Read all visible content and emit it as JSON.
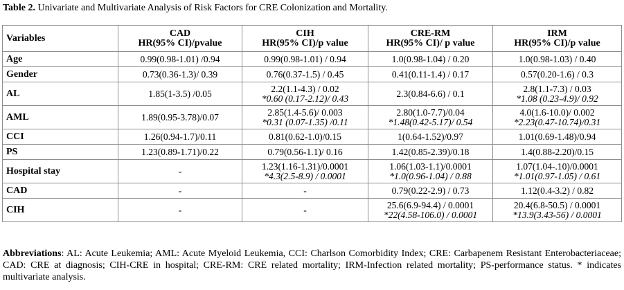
{
  "caption": {
    "label": "Table 2.",
    "text": " Univariate and Multivariate Analysis of Risk Factors for CRE Colonization and Mortality."
  },
  "table": {
    "headers": [
      {
        "line1": "Variables",
        "line2": ""
      },
      {
        "line1": "CAD",
        "line2": "HR(95% CI)/pvalue"
      },
      {
        "line1": "CIH",
        "line2": "HR(95% CI)/p value"
      },
      {
        "line1": "CRE-RM",
        "line2": "HR(95% CI)/ p value"
      },
      {
        "line1": "IRM",
        "line2": "HR(95% CI)/p value"
      }
    ],
    "rows": [
      {
        "variable": "Age",
        "cells": [
          {
            "uni": "0.99(0.98-1.01) /0.94",
            "multi": ""
          },
          {
            "uni": "0.99(0.98-1.01) / 0.94",
            "multi": ""
          },
          {
            "uni": "1.0(0.98-1.04) / 0.20",
            "multi": ""
          },
          {
            "uni": "1.0(0.98-1.03) / 0.40",
            "multi": ""
          }
        ]
      },
      {
        "variable": "Gender",
        "cells": [
          {
            "uni": "0.73(0.36-1.3)/ 0.39",
            "multi": ""
          },
          {
            "uni": "0.76(0.37-1.5) / 0.45",
            "multi": ""
          },
          {
            "uni": "0.41(0.11-1.4) / 0.17",
            "multi": ""
          },
          {
            "uni": "0.57(0.20-1.6) / 0.3",
            "multi": ""
          }
        ]
      },
      {
        "variable": "AL",
        "cells": [
          {
            "uni": "1.85(1-3.5) /0.05",
            "multi": ""
          },
          {
            "uni": "2.2(1.1-4.3) / 0.02",
            "multi": "*0.60 (0.17-2.12)/ 0.43"
          },
          {
            "uni": "2.3(0.84-6.6) / 0.1",
            "multi": ""
          },
          {
            "uni": "2.8(1.1-7.3) / 0.03",
            "multi": "*1.08 (0.23-4.9)/ 0.92"
          }
        ]
      },
      {
        "variable": "AML",
        "cells": [
          {
            "uni": "1.89(0.95-3.78)/0.07",
            "multi": ""
          },
          {
            "uni": "2.85(1.4-5.6)/ 0.003",
            "multi": "*0.31 (0.07-1.35) /0.11"
          },
          {
            "uni": "2.80(1.0-7.7)/0.04",
            "multi": "*1.48(0.42-5.17)/ 0.54"
          },
          {
            "uni": "4.0(1.6-10.0)/ 0.002",
            "multi": "*2.23(0.47-10.74)/0.31"
          }
        ]
      },
      {
        "variable": "CCI",
        "cells": [
          {
            "uni": "1.26(0.94-1.7)/0.11",
            "multi": ""
          },
          {
            "uni": "0.81(0.62-1.0)/0.15",
            "multi": ""
          },
          {
            "uni": "1(0.64-1.52)/0.97",
            "multi": ""
          },
          {
            "uni": "1.01(0.69-1.48)/0.94",
            "multi": ""
          }
        ]
      },
      {
        "variable": "PS",
        "cells": [
          {
            "uni": "1.23(0.89-1.71)/0.22",
            "multi": ""
          },
          {
            "uni": "0.79(0.56-1.1)/ 0.16",
            "multi": ""
          },
          {
            "uni": "1.42(0.85-2.39)/0.18",
            "multi": ""
          },
          {
            "uni": "1.4(0.88-2.20)/0.15",
            "multi": ""
          }
        ]
      },
      {
        "variable": "Hospital stay",
        "cells": [
          {
            "uni": "-",
            "multi": ""
          },
          {
            "uni": "1.23(1.16-1.31)/0.0001",
            "multi": "*4.3(2.5-8.9) / 0.0001"
          },
          {
            "uni": "1.06(1.03-1.1)/0.0001",
            "multi": "*1.0(0.96-1.04) / 0.88"
          },
          {
            "uni": "1.07(1.04-.10)/0.0001",
            "multi": "*1.01(0.97-1.05) / 0.61"
          }
        ]
      },
      {
        "variable": "CAD",
        "cells": [
          {
            "uni": "-",
            "multi": ""
          },
          {
            "uni": "-",
            "multi": ""
          },
          {
            "uni": "0.79(0.22-2.9) / 0.73",
            "multi": ""
          },
          {
            "uni": "1.12(0.4-3.2) / 0.82",
            "multi": ""
          }
        ]
      },
      {
        "variable": "CIH",
        "cells": [
          {
            "uni": "-",
            "multi": ""
          },
          {
            "uni": "-",
            "multi": ""
          },
          {
            "uni": "25.6(6.9-94.4) / 0.0001",
            "multi": "*22(4.58-106.0) / 0.0001"
          },
          {
            "uni": "20.4(6.8-50.5) / 0.0001",
            "multi": "*13.9(3.43-56) / 0.0001"
          }
        ]
      }
    ]
  },
  "footnote": {
    "label": "Abbreviations",
    "text": ": AL: Acute Leukemia; AML: Acute Myeloid Leukemia, CCI: Charlson Comorbidity Index; CRE: Carbapenem Resistant Enterobacteriaceae; CAD: CRE at diagnosis; CIH-CRE in hospital; CRE-RM: CRE related mortality; IRM-Infection related mortality; PS-performance status. * indicates multivariate analysis."
  }
}
